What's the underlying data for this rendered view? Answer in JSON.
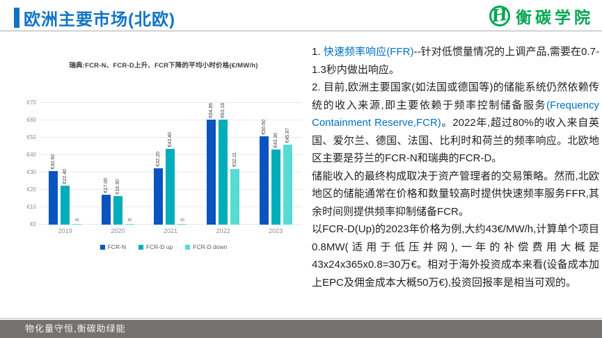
{
  "colors": {
    "title_blue": "#1173c5",
    "link_blue": "#0070c0",
    "brand_green": "#00a551",
    "footer_gray": "#767171"
  },
  "header": {
    "title": "欧洲主要市场(北欧)",
    "logo_monogram": "H",
    "logo_text": "衡碳学院"
  },
  "chart_data": {
    "type": "bar",
    "title": "瑞典:FCR-N、FCR-D上升、FCR下降的平均小时价格(€/MW/h)",
    "categories": [
      "2019",
      "2020",
      "2021",
      "2022",
      "2023"
    ],
    "series": [
      {
        "name": "FCR-N",
        "color": "#0a54c0",
        "values": [
          30.9,
          17.0,
          32.2,
          64.86,
          50.6
        ],
        "labels": [
          "€30.90",
          "€17.00",
          "€32.20",
          "€64.86",
          "€50.60"
        ]
      },
      {
        "name": "FCR-D up",
        "color": "#00aebb",
        "values": [
          22.4,
          16.3,
          43.4,
          63.18,
          43.3
        ],
        "labels": [
          "€22.40",
          "€16.30",
          "€43.40",
          "€63.18",
          "€43.30"
        ]
      },
      {
        "name": "FCR-D down",
        "color": "#57dcd3",
        "values": [
          0.5,
          0.5,
          0.5,
          32.11,
          45.87
        ],
        "labels": [
          "€0",
          "€0",
          "€0",
          "€32.11",
          "€45.87"
        ]
      }
    ],
    "xlabel": "",
    "ylabel": "",
    "ylim": [
      0,
      70
    ],
    "yticks": [
      0,
      10,
      20,
      30,
      40,
      50,
      60,
      70
    ],
    "ytick_prefix": "€",
    "grid": true,
    "legend_position": "bottom"
  },
  "panel": {
    "paragraphs": [
      {
        "runs": [
          {
            "text": "1. ",
            "style": "normal"
          },
          {
            "text": "快速频率响应(FFR)",
            "style": "blue"
          },
          {
            "text": "--针对低惯量情况的上调产品,需要在0.7-1.3秒内做出响应。",
            "style": "normal"
          }
        ]
      },
      {
        "runs": [
          {
            "text": "2. 目前,欧洲主要国家(如法国或德国等)的储能系统仍然依赖传统的收入来源,即主要依赖于频率控制储备服务",
            "style": "normal"
          },
          {
            "text": "(Frequency Containment Reserve,FCR)",
            "style": "blue"
          },
          {
            "text": "。2022年,超过80%的收入来自英国、爱尔兰、德国、法国、比利时和荷兰的频率响应。北欧地区主要是芬兰的FCR-N和瑞典的FCR-D。",
            "style": "normal"
          }
        ]
      },
      {
        "runs": [
          {
            "text": "储能收入的最终构成取决于资产管理者的交易策略。然而,北欧地区的储能通常在价格和数量较高时提供快速频率服务FFR,其余时间则提供频率抑制储备FCR。",
            "style": "normal"
          }
        ]
      },
      {
        "runs": [
          {
            "text": "以FCR-D(Up)的2023年价格为例,大约43€/MW/h,计算单个项目0.8MW(适用于低压并网),一年的补偿费用大概是43x24x365x0.8=30万€。相对于海外投资成本来看(设备成本加上EPC及佣金成本大概50万€),投资回报率是相当可观的。",
            "style": "normal"
          }
        ]
      }
    ]
  },
  "footer": {
    "text": "物化量守恒,衡碳助绿能"
  }
}
